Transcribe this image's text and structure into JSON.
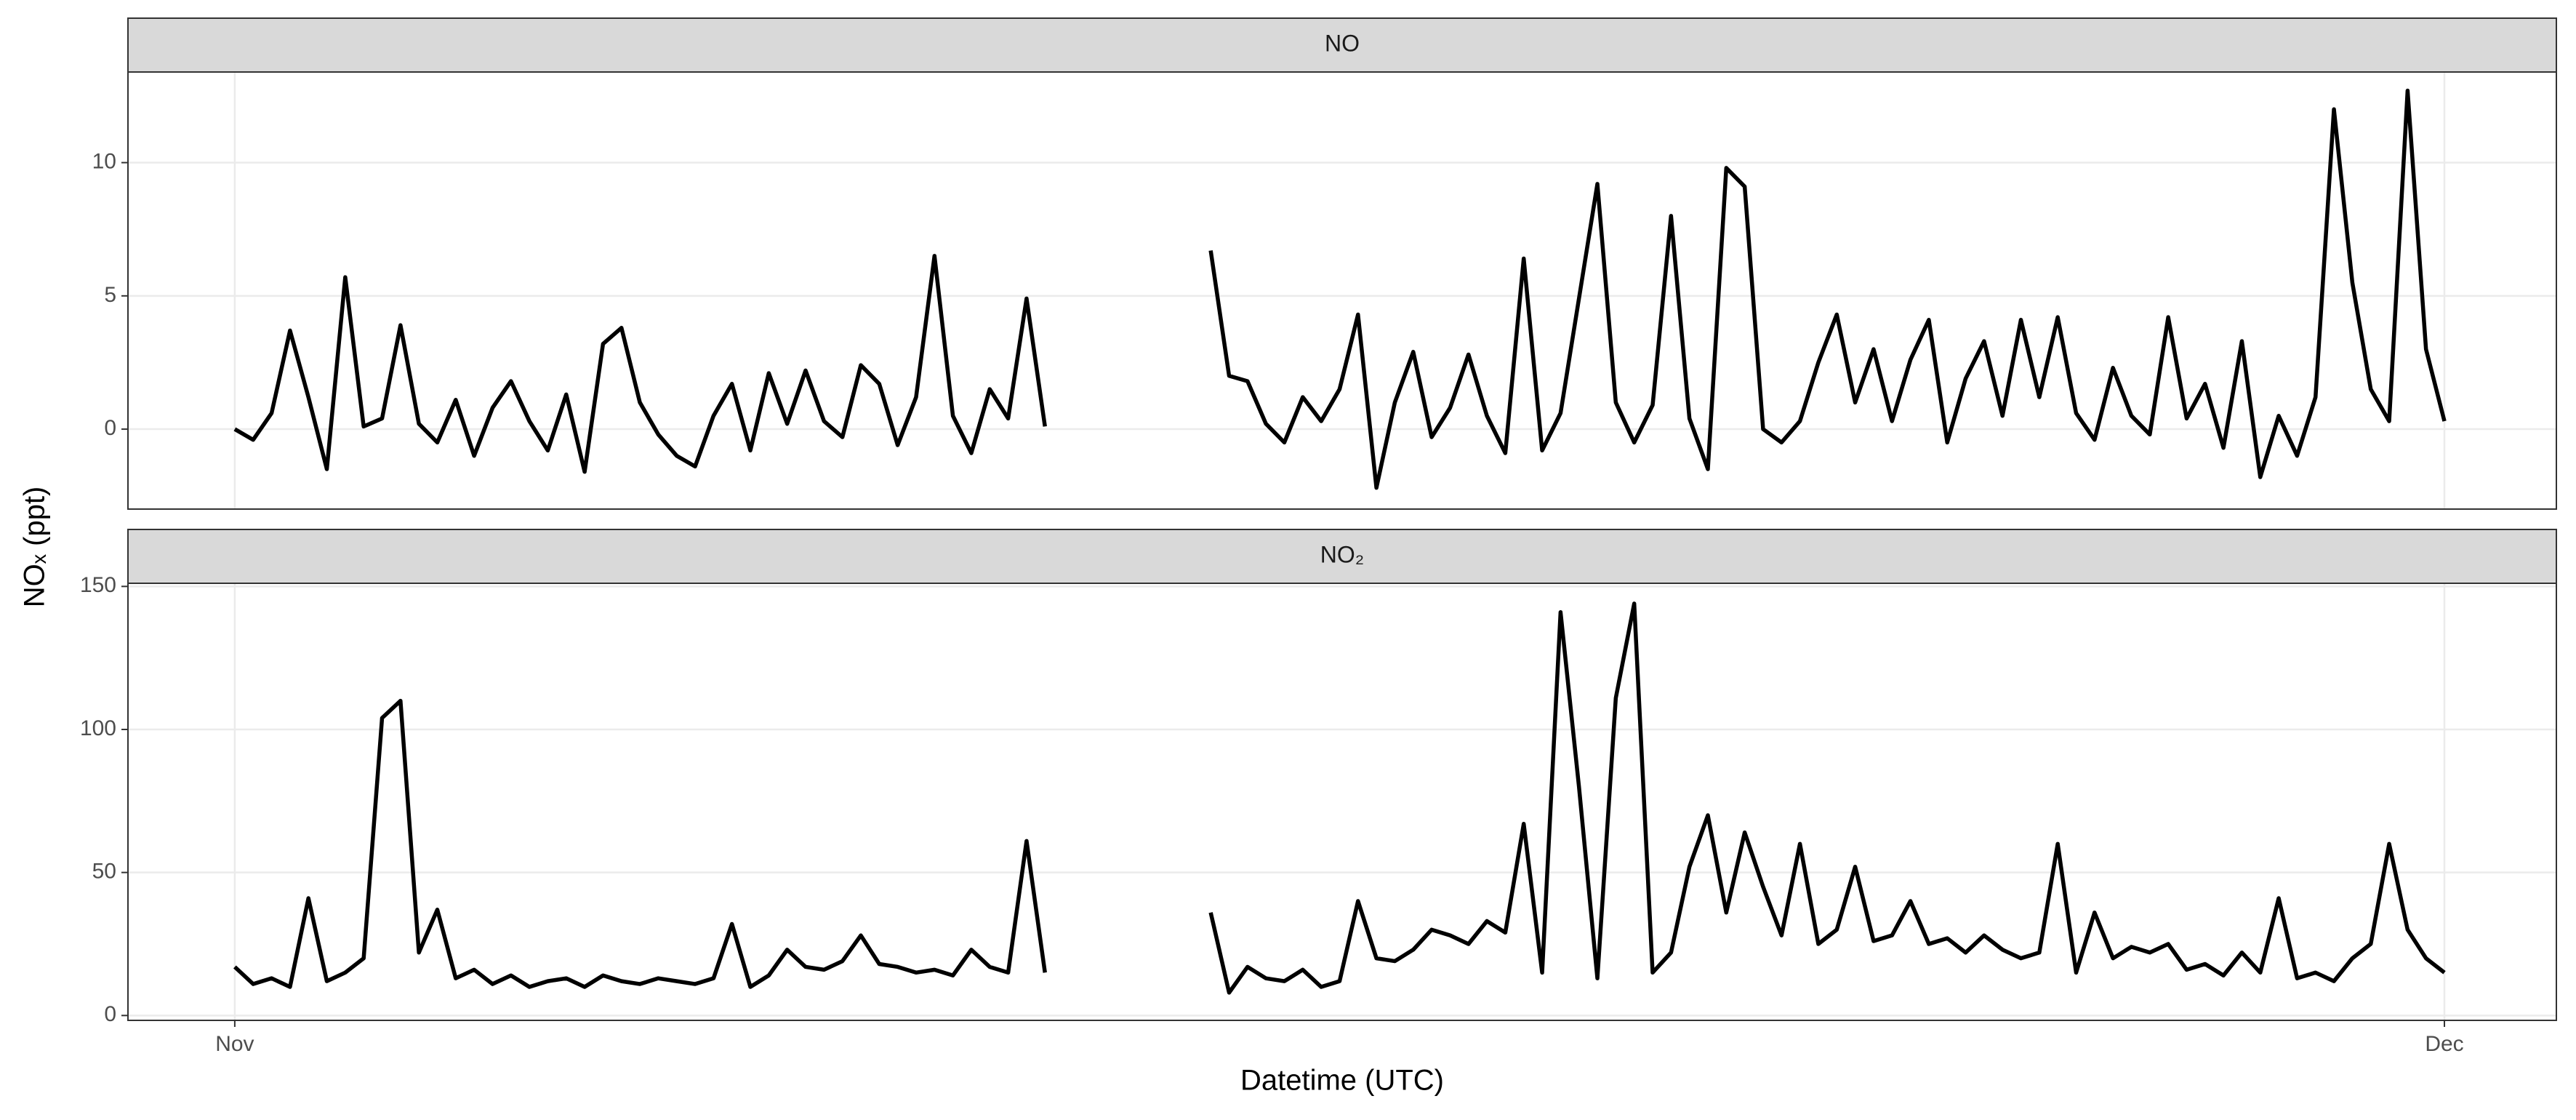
{
  "chart_data": {
    "type": "line",
    "xlabel": "Datetime (UTC)",
    "ylabel": "NOₓ (ppt)",
    "grid": true,
    "xlim": [
      -1.45,
      31.52
    ],
    "xticks": [
      {
        "value": 0,
        "label": "Nov"
      },
      {
        "value": 30,
        "label": "Dec"
      }
    ],
    "x": [
      0,
      0.25,
      0.5,
      0.75,
      1,
      1.25,
      1.5,
      1.75,
      2,
      2.25,
      2.5,
      2.75,
      3,
      3.25,
      3.5,
      3.75,
      4,
      4.25,
      4.5,
      4.75,
      5,
      5.25,
      5.5,
      5.75,
      6,
      6.25,
      6.5,
      6.75,
      7,
      7.25,
      7.5,
      7.75,
      8,
      8.25,
      8.5,
      8.75,
      9,
      9.25,
      9.5,
      9.75,
      10,
      10.25,
      10.5,
      10.75,
      11,
      11.25,
      11.5,
      11.75,
      12,
      12.25,
      12.5,
      12.75,
      13,
      13.25,
      13.5,
      13.75,
      14,
      14.25,
      14.5,
      14.75,
      15,
      15.25,
      15.5,
      15.75,
      16,
      16.25,
      16.5,
      16.75,
      17,
      17.25,
      17.5,
      17.75,
      18,
      18.25,
      18.5,
      18.75,
      19,
      19.25,
      19.5,
      19.75,
      20,
      20.25,
      20.5,
      20.75,
      21,
      21.25,
      21.5,
      21.75,
      22,
      22.25,
      22.5,
      22.75,
      23,
      23.25,
      23.5,
      23.75,
      24,
      24.25,
      24.5,
      24.75,
      25,
      25.25,
      25.5,
      25.75,
      26,
      26.25,
      26.5,
      26.75,
      27,
      27.25,
      27.5,
      27.75,
      28,
      28.25,
      28.5,
      28.75,
      29,
      29.25,
      29.5,
      29.75,
      30
    ],
    "series": [
      {
        "name": "NO",
        "color": "#000000",
        "ylim": [
          -3.0,
          13.4
        ],
        "yticks": [
          0,
          5,
          10
        ],
        "values": [
          0,
          -0.4,
          0.6,
          3.7,
          1.2,
          -1.5,
          5.7,
          0.1,
          0.4,
          3.9,
          0.2,
          -0.5,
          1.1,
          -1.0,
          0.8,
          1.8,
          0.3,
          -0.8,
          1.3,
          -1.6,
          3.2,
          3.8,
          1.0,
          -0.2,
          -1.0,
          -1.4,
          0.5,
          1.7,
          -0.8,
          2.1,
          0.2,
          2.2,
          0.3,
          -0.3,
          2.4,
          1.7,
          -0.6,
          1.2,
          6.5,
          0.5,
          -0.9,
          1.5,
          0.4,
          4.9,
          0.1,
          null,
          null,
          null,
          null,
          null,
          null,
          null,
          null,
          6.7,
          2.0,
          1.8,
          0.2,
          -0.5,
          1.2,
          0.3,
          1.5,
          4.3,
          -2.2,
          1.0,
          2.9,
          -0.3,
          0.8,
          2.8,
          0.5,
          -0.9,
          6.4,
          -0.8,
          0.6,
          4.9,
          9.2,
          1.0,
          -0.5,
          0.9,
          8.0,
          0.4,
          -1.5,
          9.8,
          9.1,
          0.0,
          -0.5,
          0.3,
          2.5,
          4.3,
          1.0,
          3.0,
          0.3,
          2.6,
          4.1,
          -0.5,
          1.9,
          3.3,
          0.5,
          4.1,
          1.2,
          4.2,
          0.6,
          -0.4,
          2.3,
          0.5,
          -0.2,
          4.2,
          0.4,
          1.7,
          -0.7,
          3.3,
          -1.8,
          0.5,
          -1.0,
          1.2,
          12.0,
          5.5,
          1.5,
          0.3,
          12.7,
          3.0,
          0.3
        ]
      },
      {
        "name": "NO₂",
        "color": "#000000",
        "ylim": [
          -1.7,
          151.1
        ],
        "yticks": [
          0,
          50,
          100,
          150
        ],
        "values": [
          17,
          11,
          13,
          10,
          41,
          12,
          15,
          20,
          104,
          110,
          22,
          37,
          13,
          16,
          11,
          14,
          10,
          12,
          13,
          10,
          14,
          12,
          11,
          13,
          12,
          11,
          13,
          32,
          10,
          14,
          23,
          17,
          16,
          19,
          28,
          18,
          17,
          15,
          16,
          14,
          23,
          17,
          15,
          61,
          15,
          null,
          null,
          null,
          null,
          null,
          null,
          null,
          null,
          36,
          8,
          17,
          13,
          12,
          16,
          10,
          12,
          40,
          20,
          19,
          23,
          30,
          28,
          25,
          33,
          29,
          67,
          15,
          141,
          80,
          13,
          111,
          144,
          15,
          22,
          52,
          70,
          36,
          64,
          45,
          28,
          60,
          25,
          30,
          52,
          26,
          28,
          40,
          25,
          27,
          22,
          28,
          23,
          20,
          22,
          60,
          15,
          36,
          20,
          24,
          22,
          25,
          16,
          18,
          14,
          22,
          15,
          41,
          13,
          15,
          12,
          20,
          25,
          60,
          30,
          20,
          15
        ]
      }
    ]
  }
}
